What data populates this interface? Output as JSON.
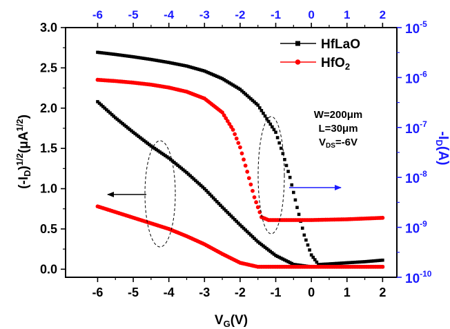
{
  "chart_data": {
    "type": "scatter",
    "x_axis": {
      "label": "V",
      "label_sub": "G",
      "label_suffix": "(V)",
      "range": [
        -6.9,
        2.4
      ],
      "ticks": [
        -6,
        -5,
        -4,
        -3,
        -2,
        -1,
        0,
        1,
        2
      ],
      "tick_labels": [
        "-6",
        "-5",
        "-4",
        "-3",
        "-2",
        "-1",
        "0",
        "1",
        "2"
      ]
    },
    "top_axis": {
      "tick_labels": [
        "-6",
        "-5",
        "-4",
        "-3",
        "-2",
        "-1",
        "0",
        "1",
        "2"
      ]
    },
    "y_left": {
      "label_open": "(-I",
      "label_sub": "D",
      "label_mid": ")",
      "label_sup": "1/2",
      "label_unit": "(μA",
      "label_unit_sup": "1/2",
      "label_close": ")",
      "range": [
        -0.1,
        3.0
      ],
      "ticks": [
        0.0,
        0.5,
        1.0,
        1.5,
        2.0,
        2.5,
        3.0
      ],
      "tick_labels": [
        "0.0",
        "0.5",
        "1.0",
        "1.5",
        "2.0",
        "2.5",
        "3.0"
      ]
    },
    "y_right": {
      "label_pre": "-I",
      "label_sub": "D",
      "label_post": "(A)",
      "scale": "log",
      "range": [
        1e-10,
        1e-05
      ],
      "ticks": [
        1e-10,
        1e-09,
        1e-08,
        1e-07,
        1e-06,
        1e-05
      ],
      "tick_base": "10",
      "tick_exponents": [
        "-10",
        "-9",
        "-8",
        "-7",
        "-6",
        "-5"
      ]
    },
    "legend": {
      "placement": "top-right",
      "entries": [
        {
          "base": "HfLaO",
          "sub": "",
          "color": "#000000",
          "marker": "square"
        },
        {
          "base": "HfO",
          "sub": "2",
          "color": "#ff0000",
          "marker": "circle"
        }
      ]
    },
    "annotation": {
      "w": "W=200μm",
      "l": "L=30μm",
      "v_pre": "V",
      "v_sub": "DS",
      "v_post": "=-6V"
    },
    "series": [
      {
        "name": "HfLaO",
        "quantity": "sqrt",
        "axis": "left",
        "color": "#000000",
        "marker": "square",
        "points": [
          [
            -6,
            2.08
          ],
          [
            -5.5,
            1.88
          ],
          [
            -5,
            1.7
          ],
          [
            -4.5,
            1.53
          ],
          [
            -4,
            1.38
          ],
          [
            -3.5,
            1.2
          ],
          [
            -3,
            1.0
          ],
          [
            -2.5,
            0.77
          ],
          [
            -2,
            0.55
          ],
          [
            -1.5,
            0.34
          ],
          [
            -1,
            0.17
          ],
          [
            -0.5,
            0.06
          ],
          [
            0,
            0.03
          ],
          [
            0.5,
            0.03
          ],
          [
            1,
            0.03
          ],
          [
            1.5,
            0.03
          ],
          [
            2,
            0.03
          ]
        ]
      },
      {
        "name": "HfLaO",
        "quantity": "log",
        "axis": "right",
        "color": "#000000",
        "marker": "square",
        "points": [
          [
            -6,
            3.2e-06
          ],
          [
            -5.5,
            2.9e-06
          ],
          [
            -5,
            2.6e-06
          ],
          [
            -4.5,
            2.3e-06
          ],
          [
            -4,
            2e-06
          ],
          [
            -3.5,
            1.7e-06
          ],
          [
            -3,
            1.35e-06
          ],
          [
            -2.5,
            9.5e-07
          ],
          [
            -2,
            5.8e-07
          ],
          [
            -1.5,
            2.8e-07
          ],
          [
            -1,
            8e-08
          ],
          [
            -0.8,
            3e-08
          ],
          [
            -0.6,
            1e-08
          ],
          [
            -0.4,
            2.5e-09
          ],
          [
            -0.2,
            7e-10
          ],
          [
            0,
            2.8e-10
          ],
          [
            0.2,
            1.8e-10
          ],
          [
            0.5,
            1.85e-10
          ],
          [
            1,
            1.95e-10
          ],
          [
            1.5,
            2.05e-10
          ],
          [
            2,
            2.2e-10
          ]
        ]
      },
      {
        "name": "HfO2",
        "quantity": "sqrt",
        "axis": "left",
        "color": "#ff0000",
        "marker": "circle",
        "points": [
          [
            -6,
            0.78
          ],
          [
            -5.5,
            0.71
          ],
          [
            -5,
            0.64
          ],
          [
            -4.5,
            0.57
          ],
          [
            -4,
            0.5
          ],
          [
            -3.5,
            0.41
          ],
          [
            -3,
            0.31
          ],
          [
            -2.5,
            0.19
          ],
          [
            -2,
            0.08
          ],
          [
            -1.5,
            0.03
          ],
          [
            -1,
            0.03
          ],
          [
            0,
            0.03
          ],
          [
            1,
            0.03
          ],
          [
            2,
            0.03
          ]
        ]
      },
      {
        "name": "HfO2",
        "quantity": "log",
        "axis": "right",
        "color": "#ff0000",
        "marker": "circle",
        "points": [
          [
            -6,
            9e-07
          ],
          [
            -5.5,
            8.5e-07
          ],
          [
            -5,
            7.9e-07
          ],
          [
            -4.5,
            7.2e-07
          ],
          [
            -4,
            6.3e-07
          ],
          [
            -3.5,
            5.2e-07
          ],
          [
            -3,
            3.8e-07
          ],
          [
            -2.5,
            2e-07
          ],
          [
            -2.2,
            9e-08
          ],
          [
            -2,
            4e-08
          ],
          [
            -1.8,
            1.3e-08
          ],
          [
            -1.6,
            4e-09
          ],
          [
            -1.4,
            1.6e-09
          ],
          [
            -1.2,
            1.4e-09
          ],
          [
            -1,
            1.4e-09
          ],
          [
            0,
            1.4e-09
          ],
          [
            1,
            1.45e-09
          ],
          [
            2,
            1.55e-09
          ]
        ]
      }
    ]
  }
}
